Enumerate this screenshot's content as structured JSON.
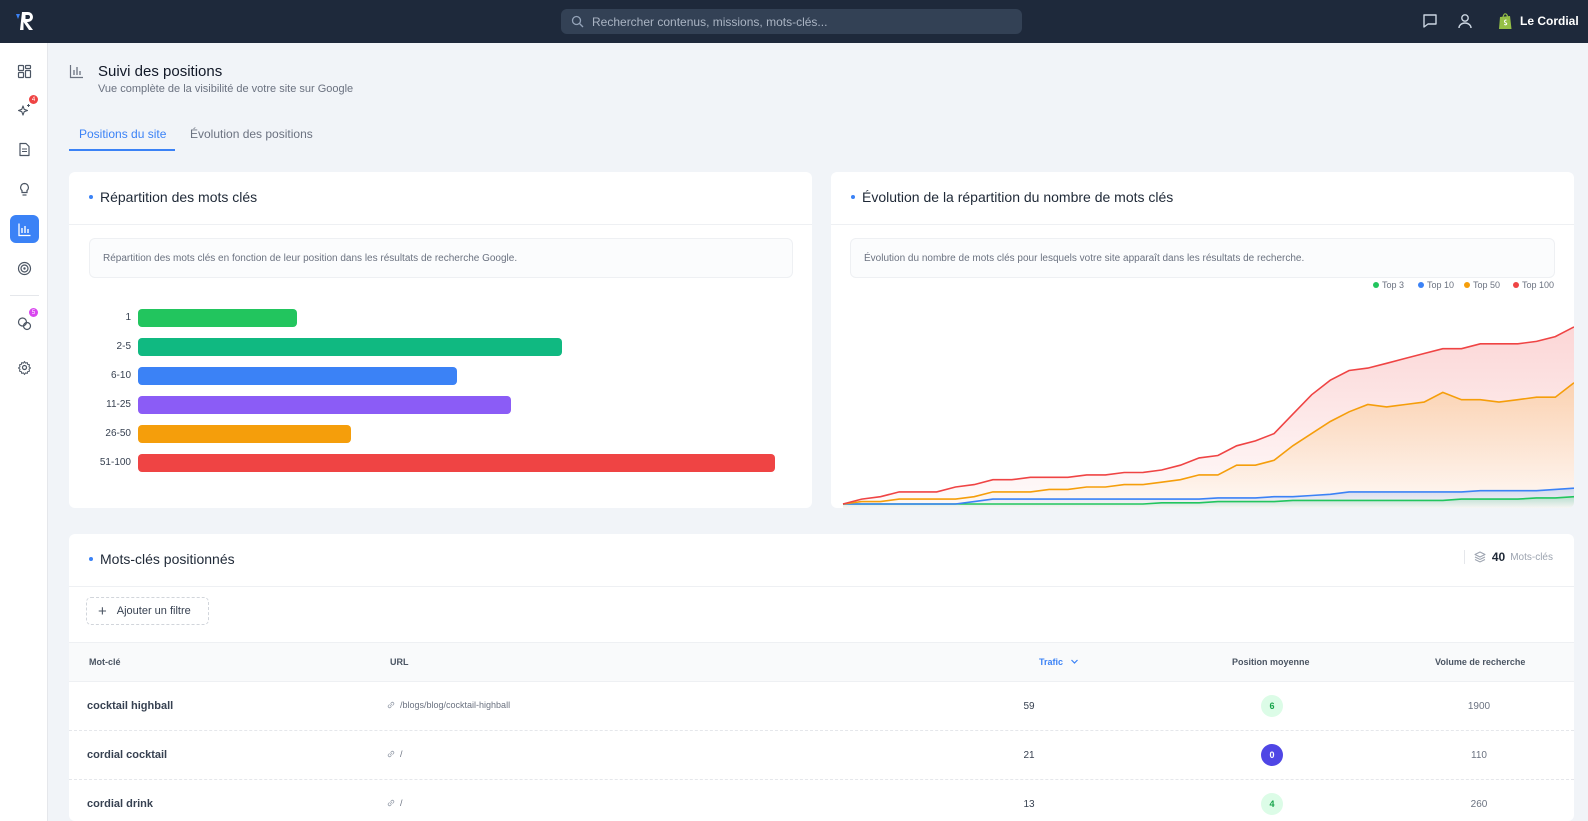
{
  "app": {
    "brand_initial": "R",
    "account": "Le Cordial"
  },
  "search": {
    "placeholder": "Rechercher contenus, missions, mots-clés..."
  },
  "sidebar": {
    "items": [
      {
        "icon": "dashboard-icon"
      },
      {
        "icon": "sparkles-icon",
        "badge": "4",
        "badge_color": "#ef4444"
      },
      {
        "icon": "document-icon"
      },
      {
        "icon": "lightbulb-icon"
      },
      {
        "icon": "bar-chart-icon",
        "active": true
      },
      {
        "icon": "target-icon"
      },
      {
        "icon": "coins-icon",
        "badge": "5",
        "badge_color": "#d946ef"
      },
      {
        "icon": "gear-icon"
      }
    ]
  },
  "header": {
    "title": "Suivi des positions",
    "subtitle": "Vue complète de la visibilité de votre site sur Google"
  },
  "tabs": [
    {
      "label": "Positions du site",
      "active": true
    },
    {
      "label": "Évolution des positions",
      "active": false
    }
  ],
  "distribution": {
    "title": "Répartition des mots clés",
    "description": "Répartition des mots clés en fonction de leur position dans les résultats de recherche Google."
  },
  "evolution": {
    "title": "Évolution de la répartition du nombre de mots clés",
    "description": "Évolution du nombre de mots clés pour lesquels votre site apparaît dans les résultats de recherche."
  },
  "chart_data": [
    {
      "type": "bar",
      "orientation": "horizontal",
      "categories": [
        "1",
        "2-5",
        "6-10",
        "11-25",
        "26-50",
        "51-100"
      ],
      "values": [
        5,
        13.3,
        10,
        11.7,
        6.7,
        20
      ],
      "colors": [
        "#22c55e",
        "#10b981",
        "#3b82f6",
        "#8b5cf6",
        "#f59e0b",
        "#ef4444"
      ],
      "grid": false
    },
    {
      "type": "area",
      "x": [
        0,
        1,
        2,
        3,
        4,
        5,
        6,
        7,
        8,
        9,
        10,
        11,
        12,
        13,
        14,
        15,
        16,
        17,
        18,
        19,
        20,
        21,
        22,
        23,
        24,
        25,
        26,
        27,
        28,
        29,
        30,
        31,
        32,
        33,
        34,
        35,
        36,
        37,
        38,
        39
      ],
      "series": [
        {
          "name": "Top 3",
          "color": "#22c55e",
          "values": [
            0,
            0,
            0,
            0,
            0,
            0,
            0,
            0,
            0,
            0,
            0,
            0,
            0,
            0,
            0,
            0,
            0,
            0.5,
            0.5,
            0.5,
            1,
            1,
            1,
            1,
            1.5,
            1.5,
            1.5,
            1.5,
            1.5,
            1.5,
            1.5,
            1.5,
            1.5,
            2,
            2,
            2,
            2,
            2.5,
            2.5,
            3
          ]
        },
        {
          "name": "Top 10",
          "color": "#3b82f6",
          "values": [
            0,
            0,
            0,
            0,
            0,
            0,
            0,
            1,
            2,
            2,
            2,
            2,
            2,
            2,
            2,
            2,
            2,
            2,
            2,
            2,
            2.5,
            2.5,
            2.5,
            3,
            3,
            3.5,
            4,
            5,
            5,
            5,
            5,
            5,
            5,
            5,
            5.5,
            5.5,
            5.5,
            5.5,
            6,
            6.5
          ]
        },
        {
          "name": "Top 50",
          "color": "#f59e0b",
          "values": [
            0,
            1,
            1,
            2,
            2,
            2,
            2,
            3,
            5,
            5,
            5,
            6,
            6,
            7,
            7,
            8,
            8,
            9,
            10,
            12,
            12,
            16,
            16,
            18,
            24,
            29,
            34,
            38,
            41,
            40,
            41,
            42,
            46,
            43,
            43,
            42,
            43,
            44,
            44,
            50
          ]
        },
        {
          "name": "Top 100",
          "color": "#ef4444",
          "values": [
            0,
            2,
            3,
            5,
            5,
            5,
            7,
            8,
            10,
            10,
            11,
            11,
            11,
            12,
            12,
            13,
            13,
            14,
            16,
            19,
            20,
            24,
            26,
            29,
            37,
            45,
            51,
            55,
            56,
            58,
            60,
            62,
            64,
            64,
            66,
            66,
            66,
            67,
            69,
            73
          ]
        }
      ],
      "legend_position": "top-right",
      "grid": false,
      "axes_visible": false
    }
  ],
  "keywords": {
    "title": "Mots-clés positionnés",
    "count": "40",
    "count_unit": "Mots-clés",
    "add_filter_label": "Ajouter un filtre",
    "columns": [
      "Mot-clé",
      "URL",
      "Trafic",
      "Position moyenne",
      "Volume de recherche"
    ],
    "sort_column": "Trafic",
    "rows": [
      {
        "keyword": "cocktail highball",
        "url": "/blogs/blog/cocktail-highball",
        "traffic": "59",
        "position": "6",
        "position_style": "green",
        "volume": "1900"
      },
      {
        "keyword": "cordial cocktail",
        "url": "/",
        "traffic": "21",
        "position": "0",
        "position_style": "indigo",
        "volume": "110"
      },
      {
        "keyword": "cordial drink",
        "url": "/",
        "traffic": "13",
        "position": "4",
        "position_style": "green",
        "volume": "260"
      }
    ]
  }
}
